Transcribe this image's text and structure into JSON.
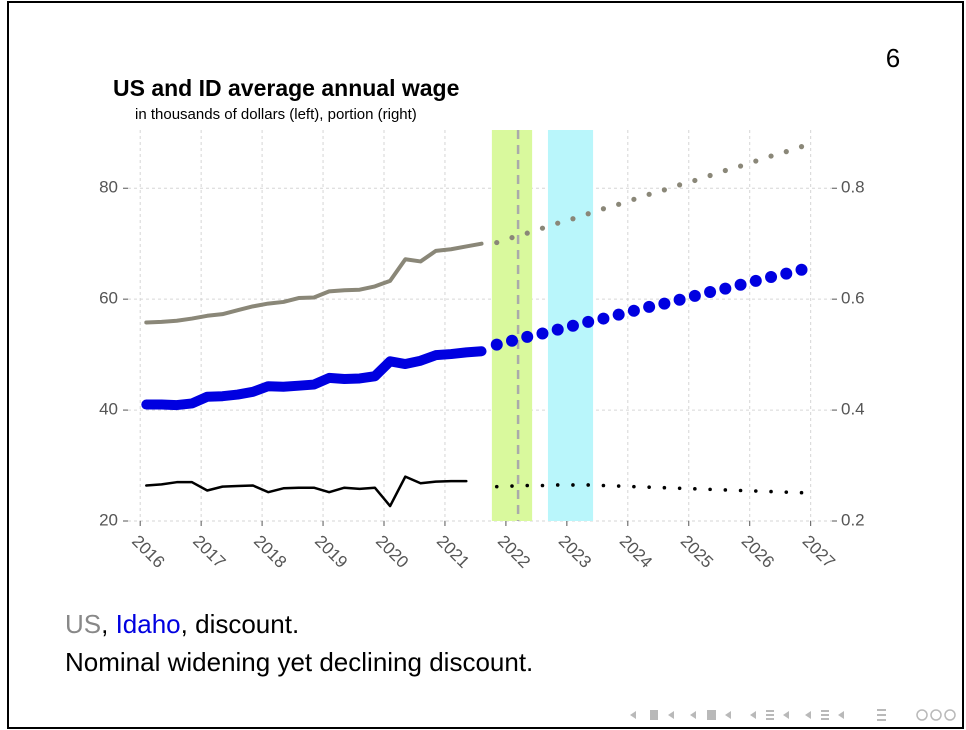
{
  "chart_data": {
    "type": "line",
    "title": "US and ID average annual wage",
    "subtitle": "in thousands of dollars (left), portion (right)",
    "page_number": "6",
    "xlim": [
      2015.8,
      2027.35
    ],
    "xticks": [
      2016,
      2017,
      2018,
      2019,
      2020,
      2021,
      2022,
      2023,
      2024,
      2025,
      2026,
      2027
    ],
    "ylim": [
      20,
      90.5
    ],
    "yticks": [
      20,
      40,
      60,
      80
    ],
    "y2lim": [
      0.2,
      0.905
    ],
    "y2ticks": [
      0.2,
      0.4,
      0.6,
      0.8
    ],
    "grid": true,
    "bands": [
      {
        "x": [
          2021.77,
          2022.43
        ],
        "color": "#d9f99d"
      },
      {
        "x": [
          2022.69,
          2023.43
        ],
        "color": "#b9f6fb"
      }
    ],
    "vline": {
      "x": 2022.2,
      "color": "#aaaaaa"
    },
    "series": [
      {
        "color": "#8a8778",
        "style": "solid",
        "x": [
          2016.1,
          2016.35,
          2016.6,
          2016.85,
          2017.1,
          2017.35,
          2017.6,
          2017.85,
          2018.1,
          2018.35,
          2018.6,
          2018.85,
          2019.1,
          2019.35,
          2019.6,
          2019.85,
          2020.1,
          2020.35,
          2020.6,
          2020.85,
          2021.1,
          2021.35,
          2021.6
        ],
        "values": [
          55.8,
          55.9,
          56.1,
          56.5,
          57.0,
          57.3,
          58.0,
          58.7,
          59.2,
          59.5,
          60.2,
          60.3,
          61.4,
          61.6,
          61.7,
          62.3,
          63.3,
          67.2,
          66.8,
          68.7,
          69.0,
          69.5,
          70.0
        ]
      },
      {
        "color": "#8a8778",
        "style": "dotted",
        "x": [
          2021.85,
          2022.1,
          2022.35,
          2022.6,
          2022.85,
          2023.1,
          2023.35,
          2023.6,
          2023.85,
          2024.1,
          2024.35,
          2024.6,
          2024.85,
          2025.1,
          2025.35,
          2025.6,
          2025.85,
          2026.1,
          2026.35,
          2026.6,
          2026.85
        ],
        "values": [
          70.2,
          71.1,
          71.9,
          72.8,
          73.7,
          74.5,
          75.4,
          76.3,
          77.1,
          78.0,
          78.9,
          79.7,
          80.6,
          81.4,
          82.3,
          83.2,
          84.0,
          84.9,
          85.8,
          86.6,
          87.5
        ]
      },
      {
        "color": "#0000e0",
        "style": "solid",
        "x": [
          2016.1,
          2016.35,
          2016.6,
          2016.85,
          2017.1,
          2017.35,
          2017.6,
          2017.85,
          2018.1,
          2018.35,
          2018.6,
          2018.85,
          2019.1,
          2019.35,
          2019.6,
          2019.85,
          2020.1,
          2020.35,
          2020.6,
          2020.85,
          2021.1,
          2021.35,
          2021.6
        ],
        "values": [
          41.0,
          41.0,
          40.9,
          41.2,
          42.4,
          42.5,
          42.8,
          43.3,
          44.3,
          44.2,
          44.4,
          44.6,
          45.8,
          45.6,
          45.7,
          46.1,
          48.8,
          48.3,
          48.9,
          49.9,
          50.1,
          50.4,
          50.6
        ]
      },
      {
        "color": "#0000e0",
        "style": "dotted",
        "x": [
          2021.85,
          2022.1,
          2022.35,
          2022.6,
          2022.85,
          2023.1,
          2023.35,
          2023.6,
          2023.85,
          2024.1,
          2024.35,
          2024.6,
          2024.85,
          2025.1,
          2025.35,
          2025.6,
          2025.85,
          2026.1,
          2026.35,
          2026.6,
          2026.85
        ],
        "values": [
          51.8,
          52.5,
          53.2,
          53.8,
          54.5,
          55.2,
          55.9,
          56.5,
          57.2,
          57.9,
          58.6,
          59.2,
          59.9,
          60.6,
          61.3,
          61.9,
          62.6,
          63.3,
          64.0,
          64.6,
          65.3
        ]
      },
      {
        "color": "#000000",
        "style": "solid",
        "axis": "y2",
        "x": [
          2016.1,
          2016.35,
          2016.6,
          2016.85,
          2017.1,
          2017.35,
          2017.6,
          2017.85,
          2018.1,
          2018.35,
          2018.6,
          2018.85,
          2019.1,
          2019.35,
          2019.6,
          2019.85,
          2020.1,
          2020.35,
          2020.6,
          2020.85,
          2021.1,
          2021.35
        ],
        "values": [
          0.264,
          0.266,
          0.27,
          0.27,
          0.255,
          0.262,
          0.263,
          0.264,
          0.252,
          0.259,
          0.26,
          0.26,
          0.252,
          0.26,
          0.258,
          0.26,
          0.227,
          0.28,
          0.268,
          0.271,
          0.272,
          0.272
        ]
      },
      {
        "color": "#000000",
        "style": "dotted",
        "axis": "y2",
        "x": [
          2021.85,
          2022.1,
          2022.35,
          2022.6,
          2022.85,
          2023.1,
          2023.35,
          2023.6,
          2023.85,
          2024.1,
          2024.35,
          2024.6,
          2024.85,
          2025.1,
          2025.35,
          2025.6,
          2025.85,
          2026.1,
          2026.35,
          2026.6,
          2026.85
        ],
        "values": [
          0.262,
          0.263,
          0.264,
          0.264,
          0.265,
          0.265,
          0.265,
          0.264,
          0.263,
          0.262,
          0.261,
          0.26,
          0.259,
          0.258,
          0.257,
          0.256,
          0.255,
          0.254,
          0.253,
          0.252,
          0.251
        ]
      }
    ],
    "caption_parts": [
      {
        "text": "US",
        "color": "#888888"
      },
      {
        "text": ", ",
        "color": "#000000"
      },
      {
        "text": "Idaho",
        "color": "#0000e0"
      },
      {
        "text": ", discount.",
        "color": "#000000"
      }
    ],
    "caption2": "Nominal widening yet declining discount."
  }
}
